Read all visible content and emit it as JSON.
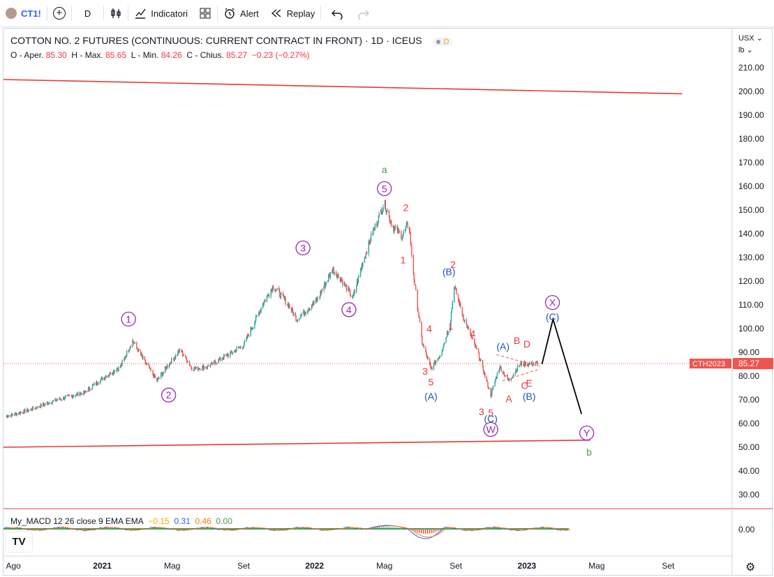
{
  "toolbar": {
    "symbol": "CT1!",
    "interval": "D",
    "indicators_label": "Indicatori",
    "alert_label": "Alert",
    "replay_label": "Replay"
  },
  "legend": {
    "title": "COTTON NO. 2 FUTURES (CONTINUOUS: CURRENT CONTRACT IN FRONT) · 1D · ICEUS",
    "badge": "D",
    "o_label": "O - Aper.",
    "o_value": "85.30",
    "h_label": "H - Max.",
    "h_value": "85.65",
    "l_label": "L - Min.",
    "l_value": "84.26",
    "c_label": "C - Chius.",
    "c_value": "85.27",
    "change": "−0.23 (−0.27%)"
  },
  "axis": {
    "currency": "USX",
    "unit": "lb",
    "price_ticks": [
      "210.00",
      "200.00",
      "190.00",
      "180.00",
      "170.00",
      "160.00",
      "150.00",
      "140.00",
      "130.00",
      "120.00",
      "110.00",
      "100.00",
      "90.00",
      "80.00",
      "70.00",
      "60.00",
      "50.00",
      "40.00",
      "30.00"
    ],
    "macd_tick": "0.00",
    "time_ticks": [
      "Ago",
      "2021",
      "Mag",
      "Set",
      "2022",
      "Mag",
      "Set",
      "2023",
      "Mag",
      "Set"
    ]
  },
  "price_tag": {
    "symbol": "CTH2023",
    "value": "85.27"
  },
  "macd": {
    "name": "My_MACD 12 26 close 9 EMA EMA",
    "v1": "−0.15",
    "v2": "0.31",
    "v3": "0.46",
    "v4": "0.00"
  },
  "colors": {
    "up": "#26a69a",
    "down": "#ef5350",
    "purple": "#9c27b0",
    "blue": "#1e53c4",
    "red_label": "#e53935",
    "green_label": "#43a047",
    "trendline": "#e53935"
  },
  "chart_data": {
    "type": "candlestick",
    "price_range": [
      22,
      226
    ],
    "waves": [
      {
        "label": "1",
        "date": "2021-02-20",
        "price": 96
      },
      {
        "label": "2",
        "date": "2021-04-10",
        "price": 78
      },
      {
        "label": "3",
        "date": "2021-12-20",
        "price": 129
      },
      {
        "label": "4",
        "date": "2022-03-01",
        "price": 110
      },
      {
        "label": "5",
        "date": "2022-05-03",
        "price": 155
      },
      {
        "label": "(A)",
        "date": "2022-07-20",
        "price": 82
      },
      {
        "label": "(B)",
        "date": "2022-08-25",
        "price": 120
      },
      {
        "label": "(C)",
        "date": "2022-10-31",
        "price": 70
      },
      {
        "label": "W",
        "date": "2022-10-31",
        "price": 70
      },
      {
        "label": "X",
        "date": "2023-02-15",
        "price": 104
      },
      {
        "label": "Y",
        "date": "2023-04-15",
        "price": 53
      }
    ],
    "path": [
      [
        "2020-07-20",
        63
      ],
      [
        "2020-09-01",
        66
      ],
      [
        "2020-10-15",
        70
      ],
      [
        "2020-12-01",
        73
      ],
      [
        "2021-01-01",
        79
      ],
      [
        "2021-02-01",
        84
      ],
      [
        "2021-02-22",
        95
      ],
      [
        "2021-03-10",
        88
      ],
      [
        "2021-04-05",
        78
      ],
      [
        "2021-04-25",
        85
      ],
      [
        "2021-05-15",
        91
      ],
      [
        "2021-06-05",
        83
      ],
      [
        "2021-07-01",
        84
      ],
      [
        "2021-08-05",
        89
      ],
      [
        "2021-09-01",
        93
      ],
      [
        "2021-10-05",
        111
      ],
      [
        "2021-10-22",
        118
      ],
      [
        "2021-11-20",
        109
      ],
      [
        "2021-12-01",
        104
      ],
      [
        "2022-01-05",
        112
      ],
      [
        "2022-02-01",
        125
      ],
      [
        "2022-02-15",
        121
      ],
      [
        "2022-03-08",
        113
      ],
      [
        "2022-03-25",
        128
      ],
      [
        "2022-04-10",
        140
      ],
      [
        "2022-05-01",
        153
      ],
      [
        "2022-05-15",
        143
      ],
      [
        "2022-06-01",
        139
      ],
      [
        "2022-06-12",
        145
      ],
      [
        "2022-06-20",
        123
      ],
      [
        "2022-07-05",
        94
      ],
      [
        "2022-07-20",
        83
      ],
      [
        "2022-08-05",
        89
      ],
      [
        "2022-08-22",
        102
      ],
      [
        "2022-08-29",
        118
      ],
      [
        "2022-09-15",
        104
      ],
      [
        "2022-10-10",
        89
      ],
      [
        "2022-10-31",
        72
      ],
      [
        "2022-11-15",
        84
      ],
      [
        "2022-12-01",
        78
      ],
      [
        "2022-12-20",
        85
      ],
      [
        "2023-01-20",
        85.27
      ]
    ],
    "projection": [
      [
        "2023-01-27",
        85
      ],
      [
        "2023-02-15",
        104
      ],
      [
        "2023-04-05",
        64
      ]
    ],
    "trendlines": [
      {
        "from": [
          "2020-07-15",
          205
        ],
        "to": [
          "2023-09-25",
          199
        ]
      },
      {
        "from": [
          "2020-07-15",
          50
        ],
        "to": [
          "2023-04-20",
          53
        ]
      }
    ]
  }
}
